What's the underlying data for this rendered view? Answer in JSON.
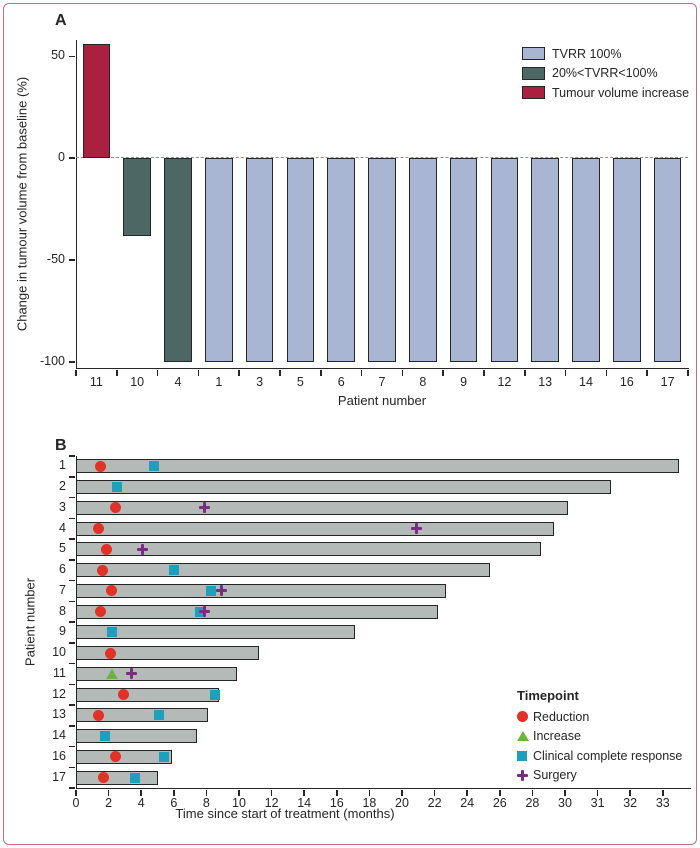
{
  "panel_labels": {
    "a": "A",
    "b": "B"
  },
  "chart_data": [
    {
      "panel": "A",
      "type": "bar",
      "title": "",
      "ylabel": "Change in tumour volume from baseline (%)",
      "xlabel": "Patient number",
      "categories": [
        "11",
        "10",
        "4",
        "1",
        "3",
        "5",
        "6",
        "7",
        "8",
        "9",
        "12",
        "13",
        "14",
        "16",
        "17"
      ],
      "values": [
        56,
        -38,
        -100,
        -100,
        -100,
        -100,
        -100,
        -100,
        -100,
        -100,
        -100,
        -100,
        -100,
        -100,
        -100
      ],
      "bar_groups": [
        "tumour_volume_increase",
        "partial_tvrr",
        "partial_tvrr",
        "tvrr_100",
        "tvrr_100",
        "tvrr_100",
        "tvrr_100",
        "tvrr_100",
        "tvrr_100",
        "tvrr_100",
        "tvrr_100",
        "tvrr_100",
        "tvrr_100",
        "tvrr_100",
        "tvrr_100"
      ],
      "yticks": [
        50,
        0,
        -50,
        -100
      ],
      "ylim": [
        -103,
        58
      ],
      "zero_line_style": "dashed",
      "grid": "off",
      "legend_position": "top-right",
      "legend": [
        {
          "label": "TVRR 100%",
          "key": "tvrr_100",
          "color": "#a9b6d3"
        },
        {
          "label": "20%<TVRR<100%",
          "key": "partial_tvrr",
          "color": "#4d6765"
        },
        {
          "label": "Tumour volume increase",
          "key": "tumour_volume_increase",
          "color": "#ab1f3f"
        }
      ]
    },
    {
      "panel": "B",
      "type": "swimmer",
      "title": "",
      "ylabel": "Patient number",
      "xlabel": "Time since start of treatment (months)",
      "categories": [
        "1",
        "2",
        "3",
        "4",
        "5",
        "6",
        "7",
        "8",
        "9",
        "10",
        "11",
        "12",
        "13",
        "14",
        "16",
        "17"
      ],
      "bar_duration_months": [
        33.5,
        31.4,
        30.1,
        29.3,
        28.5,
        25.4,
        22.7,
        22.2,
        17.1,
        11.2,
        9.9,
        8.8,
        8.1,
        7.4,
        5.9,
        5.0
      ],
      "bar_color": "#b4bab8",
      "xticks": [
        0,
        2,
        4,
        6,
        8,
        10,
        12,
        14,
        16,
        18,
        20,
        22,
        24,
        26,
        28,
        30,
        31,
        32,
        33
      ],
      "xscale": "ticks evenly spaced: 2-month steps up to 30, then 1-month steps to 33",
      "grid": "off",
      "legend_title": "Timepoint",
      "legend_position": "inside-right-bottom",
      "legend": [
        {
          "label": "Reduction",
          "key": "reduction",
          "marker": "circle",
          "color": "#e23127"
        },
        {
          "label": "Increase",
          "key": "increase",
          "marker": "triangle",
          "color": "#6cb33f"
        },
        {
          "label": "Clinical complete response",
          "key": "ccr",
          "marker": "square",
          "color": "#1f9fc0"
        },
        {
          "label": "Surgery",
          "key": "surgery",
          "marker": "plus",
          "color": "#7d2a82"
        }
      ],
      "events": [
        {
          "patient": "1",
          "type": "reduction",
          "month": 1.5
        },
        {
          "patient": "1",
          "type": "ccr",
          "month": 4.8
        },
        {
          "patient": "2",
          "type": "ccr",
          "month": 2.5
        },
        {
          "patient": "3",
          "type": "reduction",
          "month": 2.4
        },
        {
          "patient": "3",
          "type": "surgery",
          "month": 7.9
        },
        {
          "patient": "4",
          "type": "reduction",
          "month": 1.4
        },
        {
          "patient": "4",
          "type": "surgery",
          "month": 20.9
        },
        {
          "patient": "5",
          "type": "reduction",
          "month": 1.9
        },
        {
          "patient": "5",
          "type": "surgery",
          "month": 4.1
        },
        {
          "patient": "6",
          "type": "reduction",
          "month": 1.6
        },
        {
          "patient": "6",
          "type": "ccr",
          "month": 6.0
        },
        {
          "patient": "7",
          "type": "reduction",
          "month": 2.2
        },
        {
          "patient": "7",
          "type": "ccr",
          "month": 8.3
        },
        {
          "patient": "7",
          "type": "surgery",
          "month": 8.9
        },
        {
          "patient": "8",
          "type": "reduction",
          "month": 1.5
        },
        {
          "patient": "8",
          "type": "ccr",
          "month": 7.6
        },
        {
          "patient": "8",
          "type": "surgery",
          "month": 7.9
        },
        {
          "patient": "9",
          "type": "ccr",
          "month": 2.2
        },
        {
          "patient": "10",
          "type": "reduction",
          "month": 2.1
        },
        {
          "patient": "11",
          "type": "increase",
          "month": 2.2
        },
        {
          "patient": "11",
          "type": "surgery",
          "month": 3.4
        },
        {
          "patient": "12",
          "type": "reduction",
          "month": 2.9
        },
        {
          "patient": "12",
          "type": "ccr",
          "month": 8.5
        },
        {
          "patient": "13",
          "type": "reduction",
          "month": 1.4
        },
        {
          "patient": "13",
          "type": "ccr",
          "month": 5.1
        },
        {
          "patient": "14",
          "type": "ccr",
          "month": 1.8
        },
        {
          "patient": "16",
          "type": "reduction",
          "month": 2.4
        },
        {
          "patient": "16",
          "type": "ccr",
          "month": 5.4
        },
        {
          "patient": "17",
          "type": "reduction",
          "month": 1.7
        },
        {
          "patient": "17",
          "type": "ccr",
          "month": 3.6
        }
      ]
    }
  ]
}
